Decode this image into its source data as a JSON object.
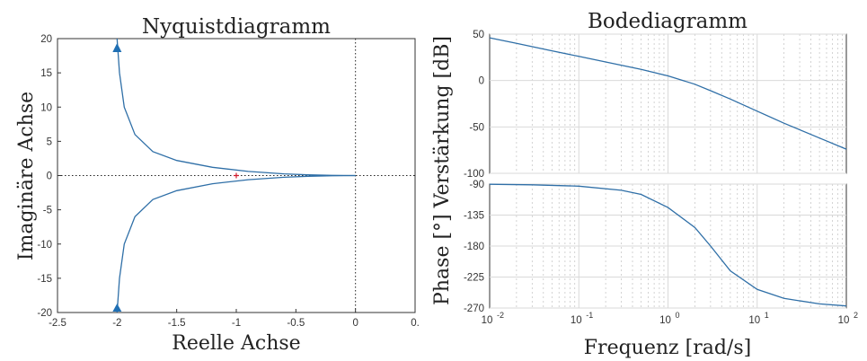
{
  "chart_data": [
    {
      "type": "line",
      "title": "Nyquistdiagramm",
      "xlabel": "Reelle Achse",
      "ylabel": "Imaginäre Achse",
      "xlim": [
        -2.5,
        0.5
      ],
      "ylim": [
        -20,
        20
      ],
      "xticks": [
        "-2.5",
        "-2",
        "-1.5",
        "-1",
        "-0.5",
        "0",
        "0."
      ],
      "yticks": [
        "20",
        "15",
        "10",
        "5",
        "0",
        "-5",
        "-10",
        "-15",
        "-20"
      ],
      "critical_point": [
        -1,
        0
      ],
      "series": [
        {
          "x": [
            -2.0,
            -1.98,
            -1.94,
            -1.85,
            -1.7,
            -1.5,
            -1.2,
            -0.9,
            -0.6,
            -0.4,
            -0.2,
            0.0
          ],
          "y": [
            -20,
            -15,
            -10,
            -6,
            -3.5,
            -2.2,
            -1.2,
            -0.6,
            -0.25,
            -0.1,
            -0.02,
            0.0
          ]
        },
        {
          "x": [
            -2.0,
            -1.98,
            -1.94,
            -1.85,
            -1.7,
            -1.5,
            -1.2,
            -0.9,
            -0.6,
            -0.4,
            -0.2,
            0.0
          ],
          "y": [
            20,
            15,
            10,
            6,
            3.5,
            2.2,
            1.2,
            0.6,
            0.25,
            0.1,
            0.02,
            0.0
          ]
        }
      ],
      "colors": {
        "curve": "#2f6fa7",
        "marker": "#1f6fb4",
        "critical": "#d11a2a"
      }
    },
    {
      "type": "line",
      "title": "Bodediagramm",
      "xlabel": "Frequenz [rad/s]",
      "ylabel": "Phase [°] Verstärkung [dB]",
      "xscale": "log",
      "xlim": [
        0.01,
        100
      ],
      "xticks": [
        "10",
        "10",
        "10",
        "10",
        "10"
      ],
      "xtick_exponents": [
        "-2",
        "-1",
        "0",
        "1",
        "2"
      ],
      "magnitude": {
        "ylim": [
          -100,
          50
        ],
        "yticks": [
          "50",
          "0",
          "-50",
          "-100"
        ],
        "x": [
          0.01,
          0.02,
          0.05,
          0.1,
          0.2,
          0.5,
          1,
          2,
          3,
          5,
          10,
          20,
          50,
          100
        ],
        "y": [
          46,
          40,
          32,
          26,
          20,
          12,
          5,
          -4,
          -11,
          -20,
          -33,
          -46,
          -62,
          -74
        ]
      },
      "phase": {
        "ylim": [
          -270,
          -90
        ],
        "yticks": [
          "-90",
          "-135",
          "-180",
          "-225",
          "-270"
        ],
        "x": [
          0.01,
          0.03,
          0.1,
          0.3,
          0.5,
          1,
          2,
          3,
          5,
          10,
          20,
          50,
          100
        ],
        "y": [
          -90.3,
          -91,
          -93,
          -99,
          -105,
          -124,
          -153,
          -180,
          -216,
          -243,
          -256,
          -264,
          -267
        ]
      },
      "colors": {
        "curve": "#2f6fa7"
      }
    }
  ]
}
